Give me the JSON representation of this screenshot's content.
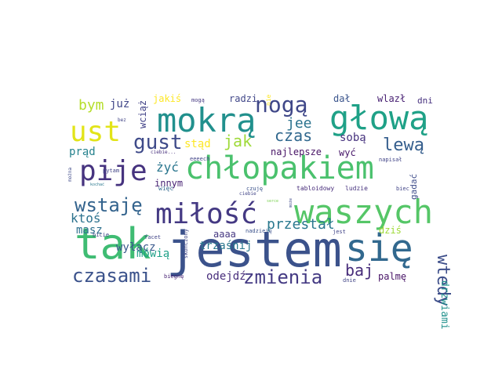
{
  "word_cloud": {
    "words": [
      {
        "text": "jestem",
        "color": "#3b528b"
      },
      {
        "text": "tak",
        "color": "#3fbc73"
      },
      {
        "text": "się",
        "color": "#31688e"
      },
      {
        "text": "chłopakiem",
        "color": "#4ac16d"
      },
      {
        "text": "waszych",
        "color": "#55c667"
      },
      {
        "text": "mokrą",
        "color": "#21908d"
      },
      {
        "text": "głową",
        "color": "#1fa187"
      },
      {
        "text": "pije",
        "color": "#46337f"
      },
      {
        "text": "ust",
        "color": "#e2e418"
      },
      {
        "text": "miłość",
        "color": "#443983"
      },
      {
        "text": "nogą",
        "color": "#3f4788"
      },
      {
        "text": "lewą",
        "color": "#355e8d"
      },
      {
        "text": "wstaję",
        "color": "#33638d"
      },
      {
        "text": "gust",
        "color": "#3e4a89"
      },
      {
        "text": "czasami",
        "color": "#3b528b"
      },
      {
        "text": "zmienia",
        "color": "#443a83"
      },
      {
        "text": "wtedy",
        "color": "#3d4e8a"
      },
      {
        "text": "baj",
        "color": "#472c7a"
      },
      {
        "text": "przestał",
        "color": "#2a788e"
      },
      {
        "text": "czas",
        "color": "#31688e"
      },
      {
        "text": "jee",
        "color": "#2c738e"
      },
      {
        "text": "jak",
        "color": "#9fda3a"
      },
      {
        "text": "bym",
        "color": "#b5de2b"
      },
      {
        "text": "już",
        "color": "#404688"
      },
      {
        "text": "prąd",
        "color": "#26828e"
      },
      {
        "text": "ktoś",
        "color": "#2c728e"
      },
      {
        "text": "żyć",
        "color": "#2a768e"
      },
      {
        "text": "stąd",
        "color": "#fde725"
      },
      {
        "text": "najlepsze",
        "color": "#471365"
      },
      {
        "text": "sobą",
        "color": "#46327e"
      },
      {
        "text": "wyć",
        "color": "#48186a"
      },
      {
        "text": "innym",
        "color": "#482374"
      },
      {
        "text": "aaaa",
        "color": "#453781"
      },
      {
        "text": "wyłącz",
        "color": "#38588c"
      },
      {
        "text": "masz",
        "color": "#2d708e"
      },
      {
        "text": "mówią",
        "color": "#1fa188"
      },
      {
        "text": "trzaśnij",
        "color": "#2a788e"
      },
      {
        "text": "odejdź",
        "color": "#472d7b"
      },
      {
        "text": "drzwiami",
        "color": "#21918c"
      },
      {
        "text": "dziś",
        "color": "#a0da39"
      },
      {
        "text": "palmę",
        "color": "#481467"
      },
      {
        "text": "radzi",
        "color": "#404688"
      },
      {
        "text": "dał",
        "color": "#3a548c"
      },
      {
        "text": "wlazł",
        "color": "#482173"
      },
      {
        "text": "dni",
        "color": "#46307e"
      },
      {
        "text": "jakiś",
        "color": "#fde725"
      },
      {
        "text": "wciąż",
        "color": "#414287"
      },
      {
        "text": "gadać",
        "color": "#3e4c8a"
      },
      {
        "text": "mogą",
        "color": "#453882"
      },
      {
        "text": "nie",
        "color": "#fde725"
      },
      {
        "text": "napisał",
        "color": "#414487"
      },
      {
        "text": "pytam",
        "color": "#414487"
      },
      {
        "text": "ciebie...",
        "color": "#472f7d"
      },
      {
        "text": "eeeech",
        "color": "#414487"
      },
      {
        "text": "więc",
        "color": "#31688e"
      },
      {
        "text": "czuję",
        "color": "#3b528b"
      },
      {
        "text": "tabloidowy",
        "color": "#472c7a"
      },
      {
        "text": "ludzie",
        "color": "#46327e"
      },
      {
        "text": "biec",
        "color": "#414487"
      },
      {
        "text": "może",
        "color": "#3e4a89"
      },
      {
        "text": "facet",
        "color": "#414487"
      },
      {
        "text": "nadzieję",
        "color": "#3b528b"
      },
      {
        "text": "jest",
        "color": "#414487"
      },
      {
        "text": "bicie",
        "color": "#414487"
      },
      {
        "text": "skończony",
        "color": "#3f4788"
      },
      {
        "text": "biegnę",
        "color": "#482374"
      },
      {
        "text": "dnie",
        "color": "#414487"
      },
      {
        "text": "ciebie",
        "color": "#414487"
      },
      {
        "text": "można",
        "color": "#3e4a89"
      },
      {
        "text": "bez",
        "color": "#414487"
      },
      {
        "text": "serce",
        "color": "#7ad151"
      },
      {
        "text": "kochać",
        "color": "#2a788e"
      }
    ]
  }
}
